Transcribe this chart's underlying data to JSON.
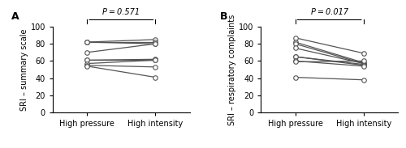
{
  "panel_A": {
    "label": "A",
    "ylabel": "SRI – summary scale",
    "pvalue": "P = 0.571",
    "high_pressure": [
      82,
      82,
      82,
      70,
      61,
      61,
      57,
      55,
      54
    ],
    "high_intensity": [
      85,
      82,
      80,
      80,
      62,
      61,
      61,
      53,
      41
    ]
  },
  "panel_B": {
    "label": "B",
    "ylabel": "SRI – respiratory complaints",
    "pvalue": "P = 0.017",
    "high_pressure": [
      87,
      82,
      80,
      75,
      65,
      65,
      60,
      59,
      41
    ],
    "high_intensity": [
      69,
      58,
      57,
      57,
      56,
      55,
      54,
      60,
      38
    ]
  },
  "xlabels": [
    "High pressure",
    "High intensity"
  ],
  "ylim": [
    0,
    100
  ],
  "yticks": [
    0,
    20,
    40,
    60,
    80,
    100
  ],
  "line_color": "#555555",
  "marker_facecolor": "white",
  "marker_edgecolor": "#555555",
  "marker_size": 4,
  "line_width": 0.9,
  "font_size": 7,
  "label_fontsize": 9,
  "figsize": [
    5.0,
    1.83
  ],
  "dpi": 100
}
